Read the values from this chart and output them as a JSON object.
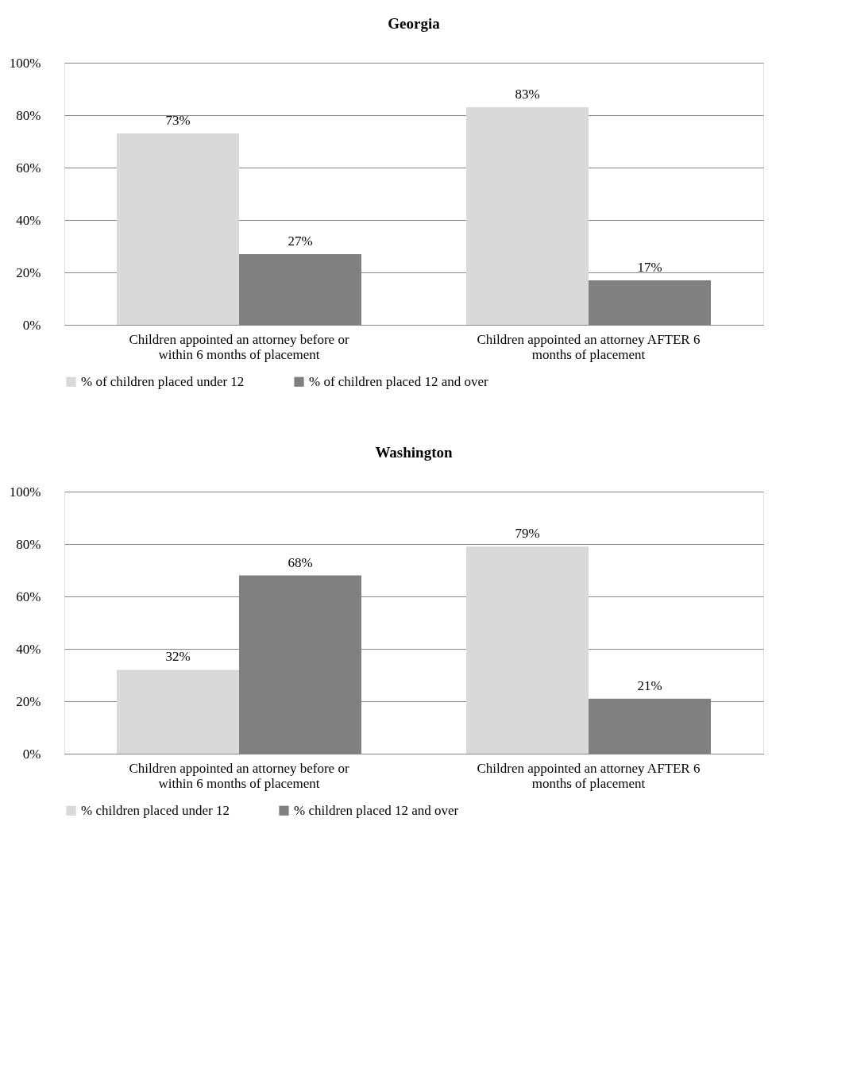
{
  "chart_data": [
    {
      "type": "bar",
      "title": "Georgia",
      "categories": [
        "Children appointed an attorney before or within 6 months of placement",
        "Children appointed an attorney AFTER 6 months of placement"
      ],
      "series": [
        {
          "name": "% of children placed under 12",
          "color": "#d9d9d9",
          "values": [
            73,
            83
          ],
          "value_labels": [
            "73%",
            "83%"
          ]
        },
        {
          "name": "% of children placed 12 and over",
          "color": "#808080",
          "values": [
            27,
            17
          ],
          "value_labels": [
            "27%",
            "17%"
          ]
        }
      ],
      "ylim": [
        0,
        100
      ],
      "yticks": [
        {
          "value": 0,
          "label": "0%"
        },
        {
          "value": 20,
          "label": "20%"
        },
        {
          "value": 40,
          "label": "40%"
        },
        {
          "value": 60,
          "label": "60%"
        },
        {
          "value": 80,
          "label": "80%"
        },
        {
          "value": 100,
          "label": "100%"
        }
      ],
      "grid": "y",
      "legend": "bottom"
    },
    {
      "type": "bar",
      "title": "Washington",
      "categories": [
        "Children appointed an attorney before or within 6 months of placement",
        "Children appointed an attorney AFTER 6 months of placement"
      ],
      "series": [
        {
          "name": "% children placed under 12",
          "color": "#d9d9d9",
          "values": [
            32,
            79
          ],
          "value_labels": [
            "32%",
            "79%"
          ]
        },
        {
          "name": "% children placed 12 and over",
          "color": "#808080",
          "values": [
            68,
            21
          ],
          "value_labels": [
            "68%",
            "21%"
          ]
        }
      ],
      "ylim": [
        0,
        100
      ],
      "yticks": [
        {
          "value": 0,
          "label": "0%"
        },
        {
          "value": 20,
          "label": "20%"
        },
        {
          "value": 40,
          "label": "40%"
        },
        {
          "value": 60,
          "label": "60%"
        },
        {
          "value": 80,
          "label": "80%"
        },
        {
          "value": 100,
          "label": "100%"
        }
      ],
      "grid": "y",
      "legend": "bottom"
    }
  ]
}
